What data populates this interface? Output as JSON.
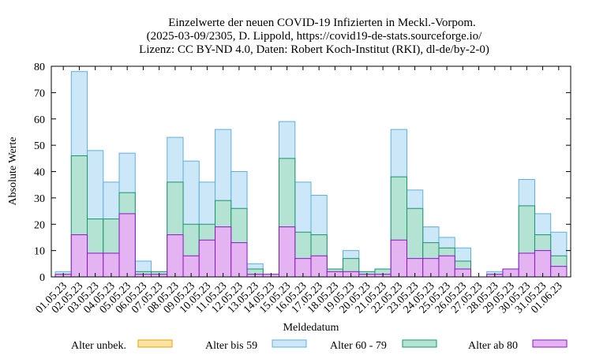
{
  "chart_data": {
    "type": "bar",
    "stacked": true,
    "title_lines": [
      "Einzelwerte der neuen COVID-19 Infizierten in Meckl.-Vorpom.",
      "(2025-03-09/2305, D. Lippold, https://covid19-de-stats.sourceforge.io/",
      "Lizenz: CC BY-ND 4.0, Daten: Robert Koch-Institut (RKI), dl-de/by-2-0)"
    ],
    "xlabel": "Meldedatum",
    "ylabel": "Absolute Werte",
    "ylim": [
      0,
      80
    ],
    "yticks": [
      0,
      10,
      20,
      30,
      40,
      50,
      60,
      70,
      80
    ],
    "grid": false,
    "legend_position": "bottom",
    "categories": [
      "01.05.23",
      "02.05.23",
      "03.05.23",
      "04.05.23",
      "05.05.23",
      "06.05.23",
      "07.05.23",
      "08.05.23",
      "09.05.23",
      "10.05.23",
      "11.05.23",
      "12.05.23",
      "13.05.23",
      "14.05.23",
      "15.05.23",
      "16.05.23",
      "17.05.23",
      "18.05.23",
      "19.05.23",
      "20.05.23",
      "21.05.23",
      "22.05.23",
      "23.05.23",
      "24.05.23",
      "25.05.23",
      "26.05.23",
      "27.05.23",
      "28.05.23",
      "29.05.23",
      "30.05.23",
      "31.05.23",
      "01.06.23"
    ],
    "series": [
      {
        "name": "Alter unbek.",
        "fill": "#fde2a3",
        "stroke": "#e0a400",
        "values": [
          0,
          0,
          0,
          0,
          0,
          0,
          0,
          0,
          0,
          0,
          0,
          0,
          0,
          0,
          0,
          0,
          0,
          0,
          0,
          0,
          0,
          0,
          0,
          0,
          0,
          0,
          0,
          0,
          0,
          0,
          0,
          0
        ]
      },
      {
        "name": "Alter ab 80",
        "fill": "#e4b4f2",
        "stroke": "#8b16c4",
        "values": [
          1,
          16,
          9,
          9,
          24,
          1,
          1,
          16,
          8,
          14,
          19,
          13,
          1,
          1,
          19,
          7,
          8,
          2,
          2,
          1,
          1,
          14,
          7,
          7,
          8,
          3,
          0,
          1,
          3,
          9,
          10,
          4
        ]
      },
      {
        "name": "Alter 60 - 79",
        "fill": "#b5e3d3",
        "stroke": "#17956a",
        "values": [
          0,
          30,
          13,
          13,
          8,
          1,
          1,
          20,
          12,
          6,
          10,
          13,
          2,
          0,
          26,
          10,
          8,
          1,
          5,
          1,
          2,
          24,
          19,
          6,
          3,
          3,
          0,
          0,
          0,
          18,
          6,
          4
        ]
      },
      {
        "name": "Alter bis 59",
        "fill": "#cce7f8",
        "stroke": "#5fb0da",
        "values": [
          1,
          32,
          26,
          14,
          15,
          4,
          0,
          17,
          24,
          16,
          27,
          14,
          2,
          0,
          14,
          19,
          15,
          0,
          3,
          0,
          0,
          18,
          7,
          6,
          4,
          5,
          0,
          1,
          0,
          10,
          8,
          9
        ]
      }
    ],
    "legend_order": [
      "Alter unbek.",
      "Alter bis 59",
      "Alter 60 - 79",
      "Alter ab 80"
    ]
  }
}
